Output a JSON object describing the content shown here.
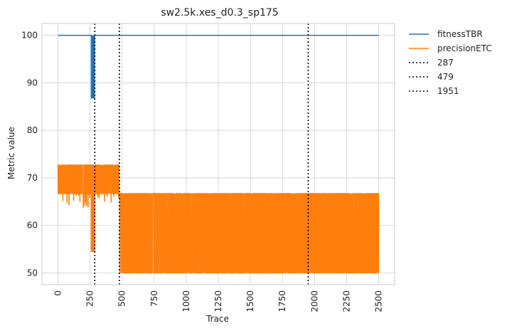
{
  "chart_data": {
    "type": "line",
    "title": "sw2.5k.xes_d0.3_sp175",
    "xlabel": "Trace",
    "ylabel": "Metric value",
    "xlim": [
      -125,
      2625
    ],
    "ylim": [
      47.5,
      102.5
    ],
    "x_ticks": [
      0,
      250,
      500,
      750,
      1000,
      1250,
      1500,
      1750,
      2000,
      2250,
      2500
    ],
    "y_ticks": [
      50,
      60,
      70,
      80,
      90,
      100
    ],
    "grid": true,
    "legend_position": "outside-right",
    "series": [
      {
        "name": "fitnessTBR",
        "color": "#1f77b4",
        "points": [
          [
            0,
            100
          ],
          [
            260,
            100
          ],
          [
            260,
            86.7
          ],
          [
            262,
            100
          ],
          [
            264,
            86.7
          ],
          [
            266,
            100
          ],
          [
            268,
            86.7
          ],
          [
            270,
            100
          ],
          [
            272,
            86.7
          ],
          [
            274,
            100
          ],
          [
            276,
            86.7
          ],
          [
            278,
            100
          ],
          [
            280,
            86.7
          ],
          [
            282,
            100
          ],
          [
            284,
            86.7
          ],
          [
            286,
            100
          ],
          [
            2500,
            100
          ]
        ]
      },
      {
        "name": "precisionETC",
        "color": "#ff7f0e",
        "segments": [
          {
            "x_start": 0,
            "x_end": 260,
            "low": 66.7,
            "high": 72.7,
            "rare_low": 63.6
          },
          {
            "x_start": 260,
            "x_end": 287,
            "low": 54.5,
            "high": 72.7
          },
          {
            "x_start": 287,
            "x_end": 479,
            "low": 66.7,
            "high": 72.7,
            "rare_low": 64.3
          },
          {
            "x_start": 479,
            "x_end": 2500,
            "low": 50,
            "high": 66.7
          }
        ]
      }
    ],
    "vlines": [
      {
        "x": 287,
        "label": "287",
        "color": "#000000",
        "style": "dotted"
      },
      {
        "x": 479,
        "label": "479",
        "color": "#000000",
        "style": "dotted"
      },
      {
        "x": 1951,
        "label": "1951",
        "color": "#000000",
        "style": "dotted"
      }
    ]
  }
}
